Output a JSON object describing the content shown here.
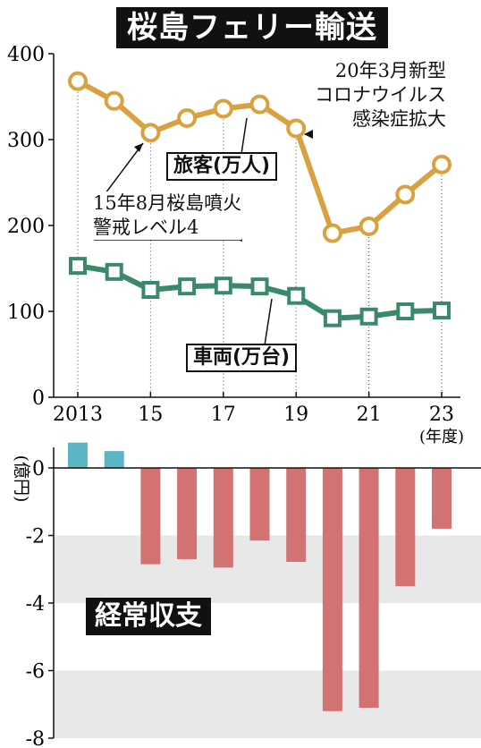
{
  "title": "桜島フェリー輸送量",
  "chart_data": [
    {
      "type": "line",
      "x": [
        "2013",
        "2014",
        "2015",
        "2016",
        "2017",
        "2018",
        "2019",
        "2020",
        "2021",
        "2022",
        "2023"
      ],
      "x_tick_labels": [
        "2013",
        "15",
        "17",
        "19",
        "21",
        "23"
      ],
      "x_unit": "(年度)",
      "ylim": [
        0,
        400
      ],
      "y_ticks": [
        "0",
        "100",
        "200",
        "300",
        "400"
      ],
      "series": [
        {
          "name": "旅客(万人)",
          "color": "#d9a13f",
          "marker": "circle",
          "values": [
            368,
            345,
            308,
            325,
            336,
            341,
            313,
            191,
            199,
            236,
            271
          ]
        },
        {
          "name": "車両(万台)",
          "color": "#3a8a69",
          "marker": "square",
          "values": [
            153,
            146,
            125,
            129,
            130,
            129,
            118,
            92,
            94,
            100,
            101
          ]
        }
      ],
      "annotations": [
        "15年8月桜島噴火\n警戒レベル4",
        "20年3月新型\nコロナウイルス\n感染症拡大"
      ]
    },
    {
      "type": "bar",
      "title": "経常収支",
      "ylabel": "(億円)",
      "x": [
        "2013",
        "2014",
        "2015",
        "2016",
        "2017",
        "2018",
        "2019",
        "2020",
        "2021",
        "2022",
        "2023"
      ],
      "values": [
        0.75,
        0.5,
        -2.85,
        -2.7,
        -2.95,
        -2.15,
        -2.78,
        -7.2,
        -7.1,
        -3.5,
        -1.8
      ],
      "ylim": [
        -8,
        1
      ],
      "y_ticks": [
        "0",
        "-2",
        "-4",
        "-6",
        "-8"
      ],
      "positive_color": "#5bb5c4",
      "negative_color": "#d27272",
      "band_color": "#e8e8e8"
    }
  ]
}
